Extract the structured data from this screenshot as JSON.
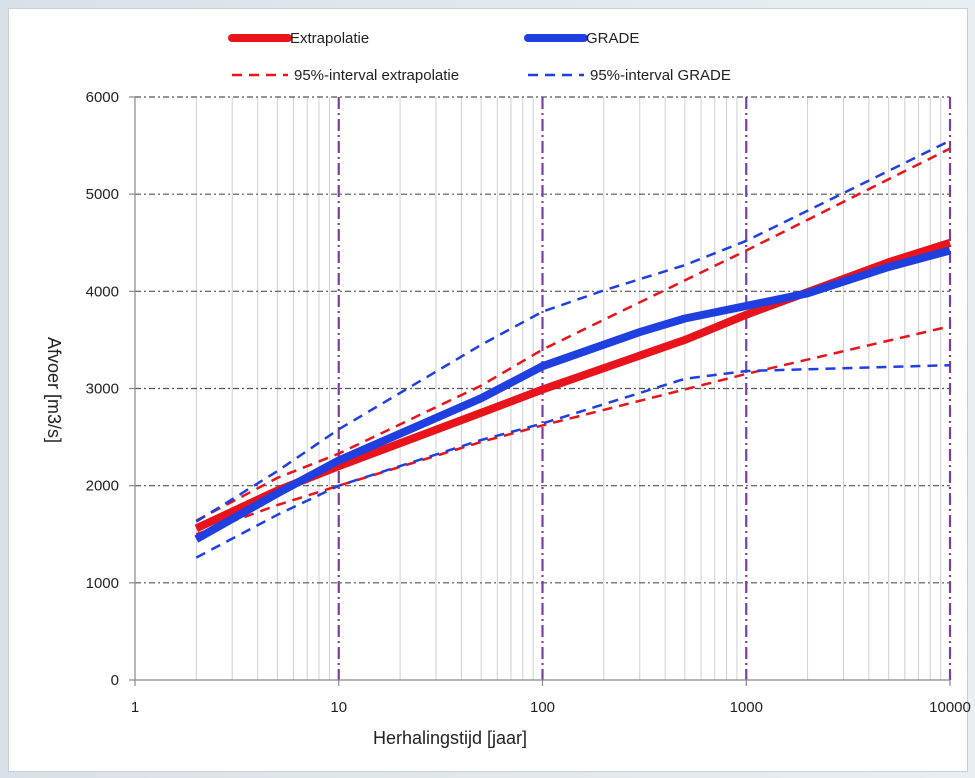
{
  "chart_data": {
    "type": "line",
    "xscale": "log",
    "xlim": [
      1,
      10000
    ],
    "ylim": [
      0,
      6000
    ],
    "xticks": [
      1,
      10,
      100,
      1000,
      10000
    ],
    "yticks": [
      0,
      1000,
      2000,
      3000,
      4000,
      5000,
      6000
    ],
    "xtick_labels": [
      "1",
      "10",
      "100",
      "1000",
      "10000"
    ],
    "ytick_labels": [
      "0",
      "1000",
      "2000",
      "3000",
      "4000",
      "5000",
      "6000"
    ],
    "xlabel": "Herhalingstijd [jaar]",
    "ylabel": "Afvoer [m3/s]",
    "grid": true,
    "legend_position": "top",
    "series": [
      {
        "name": "Extrapolatie",
        "color": "#e8131b",
        "style": "solid",
        "x": [
          2,
          5,
          10,
          50,
          100,
          500,
          1000,
          5000,
          10000
        ],
        "y": [
          1560,
          1950,
          2200,
          2750,
          2990,
          3500,
          3760,
          4300,
          4500
        ]
      },
      {
        "name": "GRADE",
        "color": "#1f3fe0",
        "style": "solid",
        "x": [
          2,
          5,
          10,
          50,
          100,
          300,
          500,
          1000,
          2000,
          5000,
          10000
        ],
        "y": [
          1450,
          1920,
          2260,
          2900,
          3230,
          3580,
          3720,
          3850,
          3980,
          4250,
          4420
        ]
      },
      {
        "name": "95%-interval extrapolatie",
        "color": "#e8131b",
        "style": "dashed",
        "x": [
          2,
          5,
          10,
          50,
          100,
          1000,
          10000
        ],
        "y": [
          1640,
          2080,
          2330,
          3030,
          3400,
          4420,
          5470
        ]
      },
      {
        "name": "95%-interval extrapolatie",
        "color": "#e8131b",
        "style": "dashed",
        "x": [
          2,
          5,
          10,
          50,
          100,
          1000,
          10000
        ],
        "y": [
          1500,
          1800,
          2000,
          2450,
          2620,
          3150,
          3640
        ]
      },
      {
        "name": "95%-interval GRADE",
        "color": "#1f3fe0",
        "style": "dashed",
        "x": [
          2,
          5,
          10,
          50,
          100,
          200,
          500,
          1000,
          10000
        ],
        "y": [
          1630,
          2150,
          2580,
          3450,
          3790,
          4010,
          4270,
          4520,
          5550
        ]
      },
      {
        "name": "95%-interval GRADE",
        "color": "#1f3fe0",
        "style": "dashed",
        "x": [
          2,
          5,
          10,
          50,
          100,
          500,
          1000,
          10000
        ],
        "y": [
          1260,
          1700,
          2000,
          2470,
          2640,
          3100,
          3180,
          3240
        ]
      }
    ],
    "legend": [
      {
        "label": "Extrapolatie",
        "color": "#e8131b",
        "style": "solid"
      },
      {
        "label": "GRADE",
        "color": "#1f3fe0",
        "style": "solid"
      },
      {
        "label": "95%-interval extrapolatie",
        "color": "#e8131b",
        "style": "dashed"
      },
      {
        "label": "95%-interval GRADE",
        "color": "#1f3fe0",
        "style": "dashed"
      }
    ]
  }
}
